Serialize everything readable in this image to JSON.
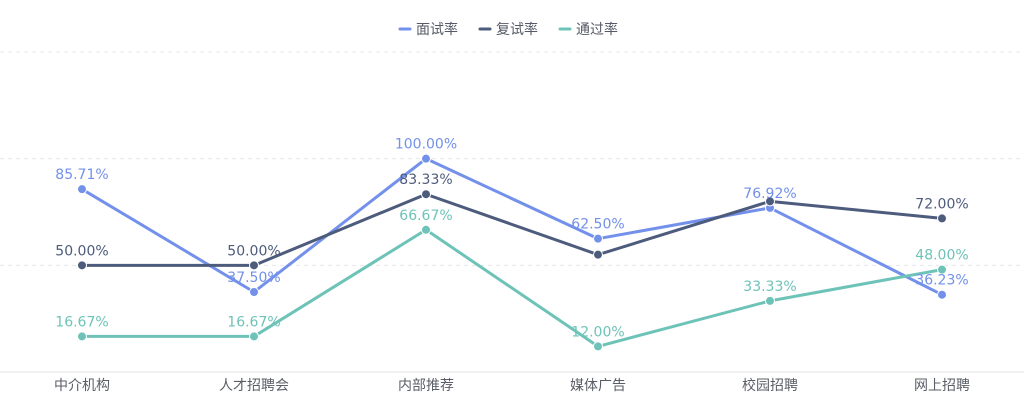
{
  "chart_data": {
    "type": "line",
    "categories": [
      "中介机构",
      "人才招聘会",
      "内部推荐",
      "媒体广告",
      "校园招聘",
      "网上招聘"
    ],
    "series": [
      {
        "name": "面试率",
        "color": "#7390ea",
        "values": [
          85.71,
          37.5,
          100.0,
          62.5,
          76.92,
          36.23
        ],
        "labels": [
          "85.71%",
          "37.50%",
          "100.00%",
          "62.50%",
          "76.92%",
          "36.23%"
        ]
      },
      {
        "name": "复试率",
        "color": "#4d5b7c",
        "values": [
          50.0,
          50.0,
          83.33,
          55.0,
          80.0,
          72.0
        ],
        "labels": [
          "50.00%",
          "50.00%",
          "83.33%",
          "",
          "",
          "72.00%"
        ]
      },
      {
        "name": "通过率",
        "color": "#6ec3b8",
        "values": [
          16.67,
          16.67,
          66.67,
          12.0,
          33.33,
          48.0
        ],
        "labels": [
          "16.67%",
          "16.67%",
          "66.67%",
          "12.00%",
          "33.33%",
          "48.00%"
        ]
      }
    ],
    "ylim": [
      0,
      150
    ],
    "grid": true,
    "legend": "top-center",
    "xlabel": "",
    "ylabel": "",
    "title": ""
  }
}
